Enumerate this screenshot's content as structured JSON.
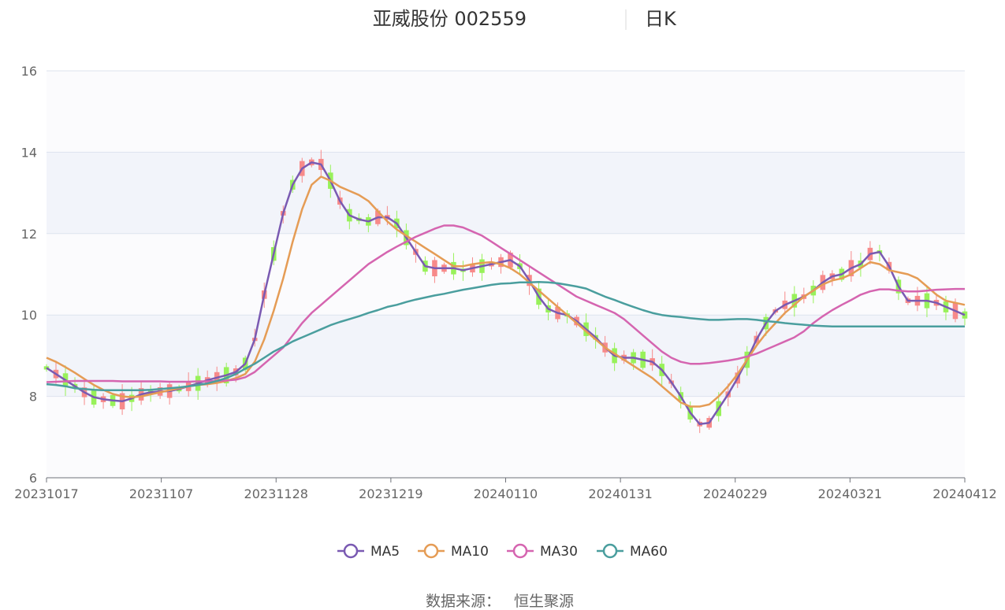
{
  "chart_data": {
    "type": "candlestick",
    "title": "亚威股份 002559",
    "subtitle": "日K",
    "source_label": "数据来源：",
    "source_value": "恒生聚源",
    "ylim": [
      6,
      16
    ],
    "y_ticks": [
      "6",
      "8",
      "10",
      "12",
      "14",
      "16"
    ],
    "x_tick_labels": [
      "20231017",
      "20231107",
      "20231128",
      "20231219",
      "20240110",
      "20240131",
      "20240229",
      "20240321",
      "20240412"
    ],
    "grid": true,
    "legend_position": "bottom",
    "colors": {
      "up": "#f78a8a",
      "down": "#98f15a",
      "ma5": "#7a5ab2",
      "ma10": "#e59c55",
      "ma30": "#d565b0",
      "ma60": "#4a9e9e",
      "band": "#f2f4fa",
      "grid": "#dde3ee"
    },
    "series": [
      {
        "name": "MA5",
        "key": "ma5",
        "values": [
          8.7,
          8.55,
          8.4,
          8.25,
          8.1,
          7.98,
          7.93,
          7.9,
          7.88,
          7.95,
          8.05,
          8.1,
          8.12,
          8.13,
          8.18,
          8.25,
          8.32,
          8.4,
          8.46,
          8.52,
          8.6,
          8.8,
          9.4,
          10.5,
          11.5,
          12.5,
          13.2,
          13.6,
          13.75,
          13.7,
          13.3,
          12.8,
          12.45,
          12.35,
          12.3,
          12.4,
          12.4,
          12.25,
          11.9,
          11.55,
          11.2,
          11.15,
          11.15,
          11.15,
          11.1,
          11.15,
          11.2,
          11.25,
          11.3,
          11.35,
          11.2,
          10.85,
          10.45,
          10.15,
          10.05,
          10.0,
          9.85,
          9.65,
          9.45,
          9.2,
          9.0,
          8.95,
          8.95,
          8.9,
          8.85,
          8.65,
          8.35,
          8.0,
          7.6,
          7.32,
          7.35,
          7.7,
          8.05,
          8.45,
          8.9,
          9.4,
          9.8,
          10.1,
          10.25,
          10.35,
          10.45,
          10.6,
          10.8,
          10.95,
          11.0,
          11.15,
          11.25,
          11.5,
          11.55,
          11.2,
          10.7,
          10.35,
          10.35,
          10.35,
          10.3,
          10.2,
          10.1,
          10.0
        ]
      },
      {
        "name": "MA10",
        "key": "ma10",
        "values": [
          8.95,
          8.85,
          8.72,
          8.58,
          8.43,
          8.28,
          8.16,
          8.06,
          8.0,
          7.98,
          8.0,
          8.05,
          8.1,
          8.15,
          8.2,
          8.25,
          8.28,
          8.3,
          8.33,
          8.38,
          8.45,
          8.55,
          8.85,
          9.4,
          10.1,
          10.9,
          11.8,
          12.6,
          13.2,
          13.4,
          13.3,
          13.15,
          13.05,
          12.95,
          12.8,
          12.55,
          12.3,
          12.1,
          11.95,
          11.8,
          11.65,
          11.5,
          11.35,
          11.2,
          11.2,
          11.25,
          11.28,
          11.3,
          11.25,
          11.15,
          11.0,
          10.8,
          10.6,
          10.4,
          10.2,
          10.0,
          9.8,
          9.6,
          9.4,
          9.2,
          9.05,
          8.9,
          8.75,
          8.6,
          8.45,
          8.25,
          8.05,
          7.85,
          7.75,
          7.75,
          7.8,
          8.0,
          8.25,
          8.55,
          8.9,
          9.25,
          9.55,
          9.8,
          10.05,
          10.25,
          10.45,
          10.6,
          10.75,
          10.85,
          10.9,
          11.0,
          11.15,
          11.3,
          11.25,
          11.1,
          11.05,
          11.0,
          10.9,
          10.7,
          10.5,
          10.35,
          10.3,
          10.25
        ]
      },
      {
        "name": "MA30",
        "key": "ma30",
        "values": [
          8.35,
          8.36,
          8.37,
          8.38,
          8.38,
          8.38,
          8.38,
          8.38,
          8.37,
          8.37,
          8.37,
          8.37,
          8.37,
          8.36,
          8.36,
          8.36,
          8.37,
          8.37,
          8.38,
          8.39,
          8.41,
          8.47,
          8.6,
          8.8,
          9.0,
          9.2,
          9.5,
          9.8,
          10.05,
          10.25,
          10.45,
          10.65,
          10.85,
          11.05,
          11.25,
          11.4,
          11.55,
          11.68,
          11.8,
          11.92,
          12.02,
          12.12,
          12.2,
          12.2,
          12.15,
          12.05,
          11.95,
          11.8,
          11.65,
          11.5,
          11.35,
          11.2,
          11.05,
          10.9,
          10.75,
          10.6,
          10.45,
          10.35,
          10.25,
          10.15,
          10.05,
          9.9,
          9.7,
          9.5,
          9.3,
          9.1,
          8.95,
          8.85,
          8.8,
          8.8,
          8.82,
          8.85,
          8.88,
          8.92,
          8.98,
          9.05,
          9.15,
          9.25,
          9.35,
          9.45,
          9.6,
          9.8,
          9.97,
          10.12,
          10.25,
          10.37,
          10.5,
          10.58,
          10.63,
          10.63,
          10.6,
          10.58,
          10.58,
          10.6,
          10.62,
          10.63,
          10.64,
          10.64
        ]
      },
      {
        "name": "MA60",
        "key": "ma60",
        "values": [
          8.3,
          8.28,
          8.25,
          8.2,
          8.18,
          8.16,
          8.15,
          8.15,
          8.15,
          8.15,
          8.15,
          8.16,
          8.18,
          8.2,
          8.22,
          8.25,
          8.28,
          8.32,
          8.38,
          8.45,
          8.55,
          8.68,
          8.8,
          8.95,
          9.1,
          9.22,
          9.35,
          9.45,
          9.55,
          9.65,
          9.75,
          9.83,
          9.9,
          9.97,
          10.05,
          10.12,
          10.2,
          10.25,
          10.32,
          10.38,
          10.43,
          10.48,
          10.52,
          10.57,
          10.62,
          10.66,
          10.7,
          10.74,
          10.77,
          10.78,
          10.8,
          10.8,
          10.81,
          10.8,
          10.78,
          10.74,
          10.7,
          10.65,
          10.55,
          10.45,
          10.37,
          10.28,
          10.2,
          10.12,
          10.05,
          10.0,
          9.97,
          9.95,
          9.92,
          9.9,
          9.88,
          9.88,
          9.89,
          9.9,
          9.9,
          9.88,
          9.85,
          9.83,
          9.8,
          9.78,
          9.76,
          9.74,
          9.73,
          9.72,
          9.72,
          9.72,
          9.72,
          9.72,
          9.72,
          9.72,
          9.72,
          9.72,
          9.72,
          9.72,
          9.72,
          9.72,
          9.72,
          9.72
        ]
      }
    ]
  }
}
